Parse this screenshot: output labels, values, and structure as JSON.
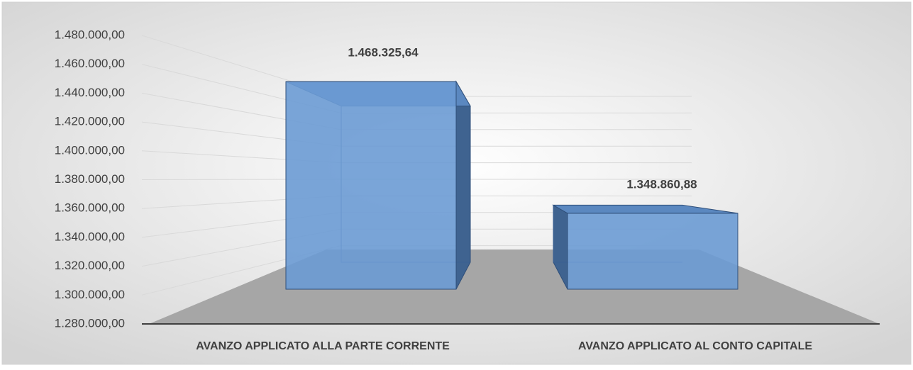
{
  "chart_data": {
    "type": "bar3d",
    "categories": [
      "AVANZO APPLICATO ALLA PARTE CORRENTE",
      "AVANZO APPLICATO AL CONTO CAPITALE"
    ],
    "values": [
      1468325.64,
      1348860.88
    ],
    "value_labels": [
      "1.468.325,64",
      "1.348.860,88"
    ],
    "color": "#6b9bd4",
    "ylim": [
      1280000,
      1480000
    ],
    "yticks": [
      {
        "value": 1280000,
        "label": "1.280.000,00"
      },
      {
        "value": 1300000,
        "label": "1.300.000,00"
      },
      {
        "value": 1320000,
        "label": "1.320.000,00"
      },
      {
        "value": 1340000,
        "label": "1.340.000,00"
      },
      {
        "value": 1360000,
        "label": "1.360.000,00"
      },
      {
        "value": 1380000,
        "label": "1.380.000,00"
      },
      {
        "value": 1400000,
        "label": "1.400.000,00"
      },
      {
        "value": 1420000,
        "label": "1.420.000,00"
      },
      {
        "value": 1440000,
        "label": "1.440.000,00"
      },
      {
        "value": 1460000,
        "label": "1.460.000,00"
      },
      {
        "value": 1480000,
        "label": "1.480.000,00"
      }
    ],
    "grid": true
  }
}
